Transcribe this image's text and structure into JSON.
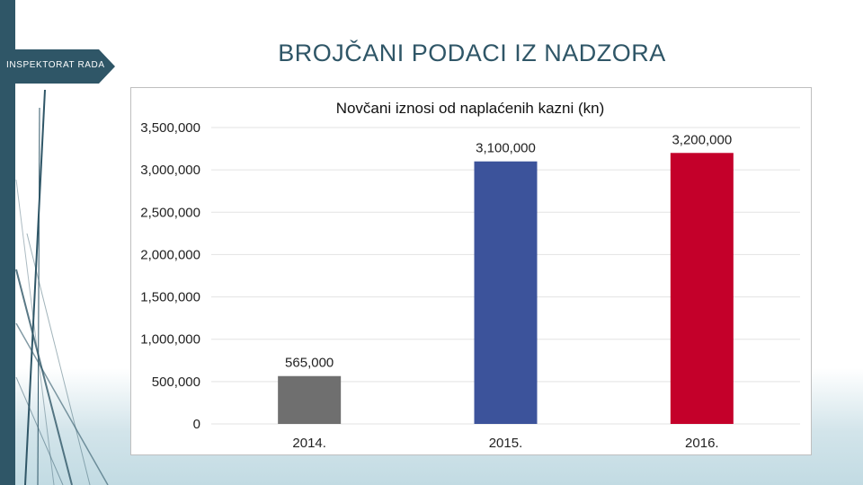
{
  "header": {
    "tab_label": "INSPEKTORAT RADA",
    "title": "BROJČANI PODACI IZ NADZORA"
  },
  "colors": {
    "accent": "#2f5667",
    "bar_2014": "#6f6f6f",
    "bar_2015": "#3c539b",
    "bar_2016": "#c4002a"
  },
  "chart_data": {
    "type": "bar",
    "title": "Novčani iznosi od naplaćenih kazni (kn)",
    "xlabel": "",
    "ylabel": "",
    "categories": [
      "2014.",
      "2015.",
      "2016."
    ],
    "values": [
      565000,
      3100000,
      3200000
    ],
    "data_labels": [
      "565,000",
      "3,100,000",
      "3,200,000"
    ],
    "bar_colors": [
      "#6f6f6f",
      "#3c539b",
      "#c4002a"
    ],
    "ylim": [
      0,
      3500000
    ],
    "yticks": [
      0,
      500000,
      1000000,
      1500000,
      2000000,
      2500000,
      3000000,
      3500000
    ],
    "ytick_labels": [
      "0",
      "500,000",
      "1,000,000",
      "1,500,000",
      "2,000,000",
      "2,500,000",
      "3,000,000",
      "3,500,000"
    ],
    "grid": true,
    "legend": "none"
  }
}
